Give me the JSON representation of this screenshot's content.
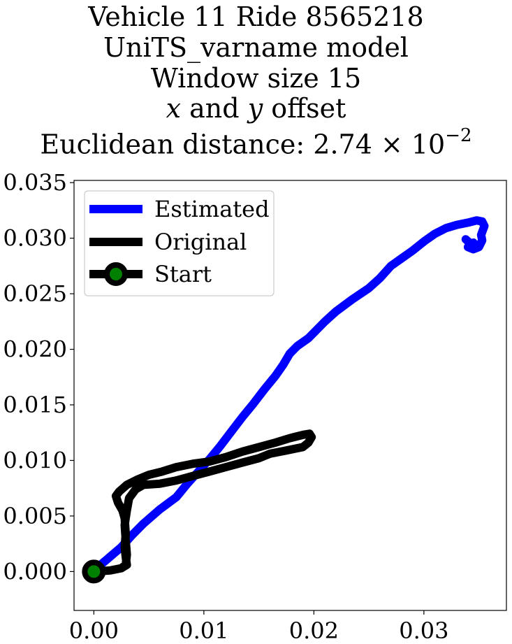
{
  "title": {
    "line1": "Vehicle 11 Ride 8565218",
    "line2": "UniTS_varname model",
    "line3": "Window size 15",
    "line4_x": "x",
    "line4_mid": " and ",
    "line4_y": "y",
    "line4_end": " offset",
    "line5_prefix": "Euclidean distance: 2.74 × 10",
    "line5_exp": "−2"
  },
  "chart_data": {
    "type": "line",
    "title": "Vehicle 11 Ride 8565218 UniTS_varname model Window size 15 x and y offset Euclidean distance: 2.74 × 10^-2",
    "xlabel": "",
    "ylabel": "",
    "xlim": [
      -0.0018,
      0.0375
    ],
    "ylim": [
      -0.0035,
      0.0352
    ],
    "xticks": [
      0.0,
      0.01,
      0.02,
      0.03
    ],
    "xtick_labels": [
      "0.00",
      "0.01",
      "0.02",
      "0.03"
    ],
    "yticks": [
      0.0,
      0.005,
      0.01,
      0.015,
      0.02,
      0.025,
      0.03,
      0.035
    ],
    "ytick_labels": [
      "0.000",
      "0.005",
      "0.010",
      "0.015",
      "0.020",
      "0.025",
      "0.030",
      "0.035"
    ],
    "grid": false,
    "legend_position": "top-left",
    "series": [
      {
        "name": "Estimated",
        "color": "#0000ff",
        "x": [
          0.0,
          0.0012,
          0.0025,
          0.0035,
          0.0045,
          0.006,
          0.0075,
          0.0085,
          0.0095,
          0.0105,
          0.0115,
          0.0125,
          0.0135,
          0.0145,
          0.0155,
          0.0165,
          0.0172,
          0.0178,
          0.0185,
          0.0195,
          0.0205,
          0.021,
          0.022,
          0.0235,
          0.025,
          0.026,
          0.027,
          0.028,
          0.029,
          0.03,
          0.031,
          0.032,
          0.033,
          0.034,
          0.0348,
          0.0353,
          0.0355,
          0.0352,
          0.0353,
          0.035,
          0.0345,
          0.034,
          0.0345,
          0.0347,
          0.0338
        ],
        "y": [
          0.0001,
          0.0011,
          0.0022,
          0.0033,
          0.0043,
          0.0056,
          0.0067,
          0.0079,
          0.009,
          0.0101,
          0.0113,
          0.0126,
          0.0139,
          0.0151,
          0.0164,
          0.0176,
          0.0186,
          0.0196,
          0.0203,
          0.021,
          0.022,
          0.0225,
          0.0234,
          0.0245,
          0.0255,
          0.0264,
          0.0275,
          0.0282,
          0.0289,
          0.0297,
          0.0304,
          0.0309,
          0.0312,
          0.0314,
          0.0316,
          0.0315,
          0.0311,
          0.0303,
          0.0298,
          0.0292,
          0.029,
          0.0292,
          0.0296,
          0.0291,
          0.0299
        ]
      },
      {
        "name": "Original",
        "color": "#000000",
        "x": [
          0.0,
          0.0015,
          0.0025,
          0.003,
          0.0029,
          0.0028,
          0.0029,
          0.0028,
          0.0026,
          0.0022,
          0.002,
          0.0023,
          0.003,
          0.004,
          0.005,
          0.0062,
          0.0075,
          0.009,
          0.0105,
          0.012,
          0.0135,
          0.015,
          0.0165,
          0.0178,
          0.019,
          0.0196,
          0.0198,
          0.0195,
          0.019,
          0.0175,
          0.016,
          0.015,
          0.0135,
          0.012,
          0.0105,
          0.009,
          0.0075,
          0.006,
          0.0045,
          0.0038,
          0.0032,
          0.003,
          0.0028,
          0.0029,
          0.003,
          0.0029,
          0.0025,
          0.0015,
          0.0
        ],
        "y": [
          0.0,
          0.0001,
          0.0003,
          0.0006,
          0.0013,
          0.0022,
          0.0034,
          0.0048,
          0.0055,
          0.0062,
          0.0068,
          0.0072,
          0.0078,
          0.0083,
          0.0087,
          0.009,
          0.0094,
          0.0097,
          0.0099,
          0.0103,
          0.0108,
          0.0112,
          0.0116,
          0.012,
          0.0123,
          0.0124,
          0.0121,
          0.0116,
          0.0112,
          0.0109,
          0.0106,
          0.0102,
          0.0098,
          0.0094,
          0.009,
          0.0086,
          0.0082,
          0.0079,
          0.0078,
          0.0074,
          0.0066,
          0.0055,
          0.0042,
          0.0028,
          0.0015,
          0.0006,
          0.0003,
          0.0001,
          0.0
        ]
      },
      {
        "name": "Start",
        "color": "#000000",
        "marker_color": "#008000",
        "x": [
          0.0
        ],
        "y": [
          0.0
        ]
      }
    ]
  }
}
